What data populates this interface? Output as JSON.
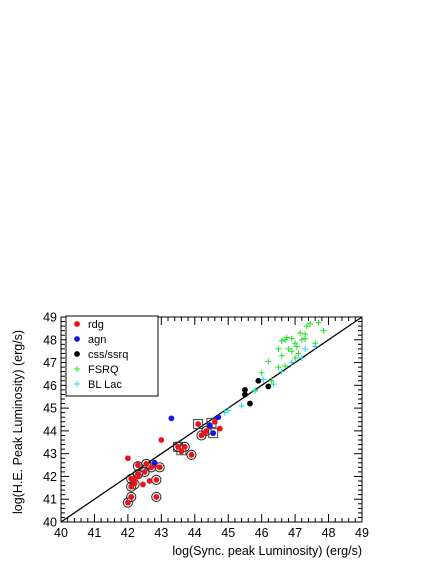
{
  "chart_data": {
    "type": "scatter",
    "xlabel": "log(Sync. peak Luminosity) (erg/s)",
    "ylabel": "log(H.E. Peak Luminosity) (erg/s)",
    "xlim": [
      40,
      49
    ],
    "ylim": [
      40,
      49
    ],
    "x_ticks": [
      "40",
      "41",
      "42",
      "43",
      "44",
      "45",
      "46",
      "47",
      "48",
      "49"
    ],
    "y_ticks": [
      "40",
      "41",
      "42",
      "43",
      "44",
      "45",
      "46",
      "47",
      "48",
      "49"
    ],
    "legend_position": "top-left",
    "grid": false,
    "reference_line": {
      "type": "y=x",
      "color": "#000000"
    },
    "series": [
      {
        "name": "rdg",
        "marker": "dot",
        "color": "#e8141b",
        "points": [
          [
            42.0,
            42.8
          ],
          [
            42.3,
            42.5
          ],
          [
            42.55,
            42.55
          ],
          [
            42.8,
            42.5
          ],
          [
            42.95,
            42.4
          ],
          [
            43.0,
            43.6
          ],
          [
            42.1,
            41.9
          ],
          [
            42.3,
            42.1
          ],
          [
            42.5,
            42.2
          ],
          [
            42.7,
            42.4
          ],
          [
            42.2,
            41.7
          ],
          [
            42.45,
            41.65
          ],
          [
            42.65,
            41.8
          ],
          [
            42.85,
            41.85
          ],
          [
            42.1,
            41.55
          ],
          [
            42.2,
            41.9
          ],
          [
            42.0,
            40.85
          ],
          [
            42.1,
            41.1
          ],
          [
            42.85,
            41.1
          ],
          [
            42.3,
            42.0
          ],
          [
            43.9,
            42.95
          ],
          [
            43.5,
            43.3
          ],
          [
            43.7,
            43.3
          ],
          [
            44.2,
            43.8
          ],
          [
            44.35,
            44.0
          ],
          [
            44.45,
            44.2
          ],
          [
            44.6,
            44.4
          ],
          [
            44.75,
            44.1
          ],
          [
            44.1,
            44.3
          ],
          [
            43.6,
            43.1
          ],
          [
            44.3,
            43.9
          ]
        ],
        "outlined": [
          [
            42.3,
            42.45
          ],
          [
            42.55,
            42.55
          ],
          [
            42.95,
            42.4
          ],
          [
            42.1,
            41.9
          ],
          [
            42.3,
            42.1
          ],
          [
            42.5,
            42.2
          ],
          [
            42.7,
            42.4
          ],
          [
            42.2,
            41.65
          ],
          [
            42.85,
            41.85
          ],
          [
            42.1,
            41.55
          ],
          [
            42.0,
            40.85
          ],
          [
            42.1,
            41.1
          ],
          [
            42.85,
            41.1
          ],
          [
            43.9,
            42.95
          ],
          [
            43.5,
            43.3
          ],
          [
            43.7,
            43.3
          ],
          [
            44.2,
            43.8
          ],
          [
            44.35,
            44.0
          ]
        ],
        "boxed": [
          [
            44.1,
            44.3
          ],
          [
            43.6,
            43.15
          ],
          [
            44.5,
            44.35
          ],
          [
            43.5,
            43.3
          ]
        ]
      },
      {
        "name": "agn",
        "marker": "dot",
        "color": "#1414e6",
        "points": [
          [
            42.8,
            42.6
          ],
          [
            43.3,
            44.55
          ],
          [
            44.45,
            44.25
          ],
          [
            44.7,
            44.6
          ],
          [
            44.55,
            43.9
          ]
        ],
        "boxed": [
          [
            44.55,
            43.9
          ]
        ]
      },
      {
        "name": "css/ssrq",
        "marker": "dot",
        "color": "#000000",
        "points": [
          [
            45.5,
            45.6
          ],
          [
            45.5,
            45.8
          ],
          [
            45.65,
            45.2
          ],
          [
            45.9,
            46.2
          ],
          [
            46.2,
            45.95
          ]
        ]
      },
      {
        "name": "FSRQ",
        "marker": "plus",
        "color": "#22e022",
        "points": [
          [
            45.8,
            45.75
          ],
          [
            46.0,
            46.55
          ],
          [
            46.3,
            46.2
          ],
          [
            46.2,
            47.05
          ],
          [
            46.5,
            46.8
          ],
          [
            46.6,
            47.3
          ],
          [
            46.7,
            46.85
          ],
          [
            46.5,
            47.6
          ],
          [
            46.8,
            47.6
          ],
          [
            46.9,
            47.5
          ],
          [
            47.0,
            47.2
          ],
          [
            47.05,
            47.7
          ],
          [
            46.7,
            48.0
          ],
          [
            46.75,
            48.1
          ],
          [
            47.0,
            47.85
          ],
          [
            47.15,
            48.3
          ],
          [
            47.2,
            48.0
          ],
          [
            47.3,
            48.05
          ],
          [
            47.1,
            47.4
          ],
          [
            47.35,
            48.6
          ],
          [
            47.45,
            48.7
          ],
          [
            47.6,
            47.85
          ],
          [
            47.7,
            48.75
          ],
          [
            47.85,
            48.4
          ],
          [
            47.3,
            48.25
          ],
          [
            46.9,
            48.05
          ],
          [
            46.6,
            47.95
          ]
        ]
      },
      {
        "name": "BL Lac",
        "marker": "plus",
        "color": "#20d8e8",
        "points": [
          [
            44.9,
            44.8
          ],
          [
            45.0,
            44.9
          ],
          [
            45.8,
            45.8
          ],
          [
            46.05,
            46.25
          ],
          [
            46.35,
            46.05
          ],
          [
            46.6,
            46.6
          ],
          [
            46.9,
            47.0
          ],
          [
            47.2,
            47.2
          ],
          [
            47.3,
            47.6
          ],
          [
            47.6,
            47.7
          ],
          [
            45.4,
            45.1
          ]
        ]
      }
    ]
  }
}
